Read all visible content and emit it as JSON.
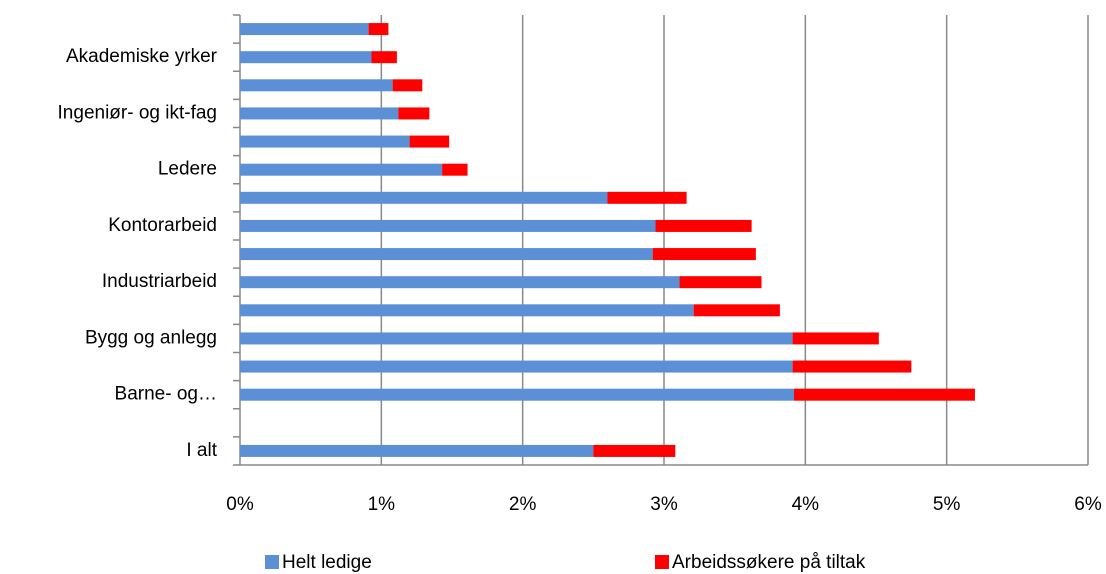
{
  "chart_data": {
    "type": "bar",
    "orientation": "horizontal",
    "stacked": true,
    "categories": [
      null,
      "Akademiske yrker",
      null,
      "Ingeniør- og ikt-fag",
      null,
      "Ledere",
      null,
      "Kontorarbeid",
      null,
      "Industriarbeid",
      null,
      "Bygg og anlegg",
      null,
      "Barne- og…",
      null,
      "I alt"
    ],
    "series": [
      {
        "name": "Helt ledige",
        "color": "#5b8fd6",
        "values": [
          0.91,
          0.93,
          1.08,
          1.12,
          1.2,
          1.43,
          2.6,
          2.94,
          2.92,
          3.11,
          3.21,
          3.91,
          3.91,
          3.92,
          null,
          2.5
        ]
      },
      {
        "name": "Arbeidssøkere på tiltak",
        "color": "#ff0000",
        "values": [
          0.14,
          0.18,
          0.21,
          0.22,
          0.28,
          0.18,
          0.56,
          0.68,
          0.73,
          0.58,
          0.61,
          0.61,
          0.84,
          1.28,
          null,
          0.58
        ]
      }
    ],
    "xlim": [
      0,
      6
    ],
    "xticks": [
      {
        "value": 0,
        "label": "0%"
      },
      {
        "value": 1,
        "label": "1%"
      },
      {
        "value": 2,
        "label": "2%"
      },
      {
        "value": 3,
        "label": "3%"
      },
      {
        "value": 4,
        "label": "4%"
      },
      {
        "value": 5,
        "label": "5%"
      },
      {
        "value": 6,
        "label": "6%"
      }
    ],
    "grid": true,
    "legend": "bottom"
  }
}
